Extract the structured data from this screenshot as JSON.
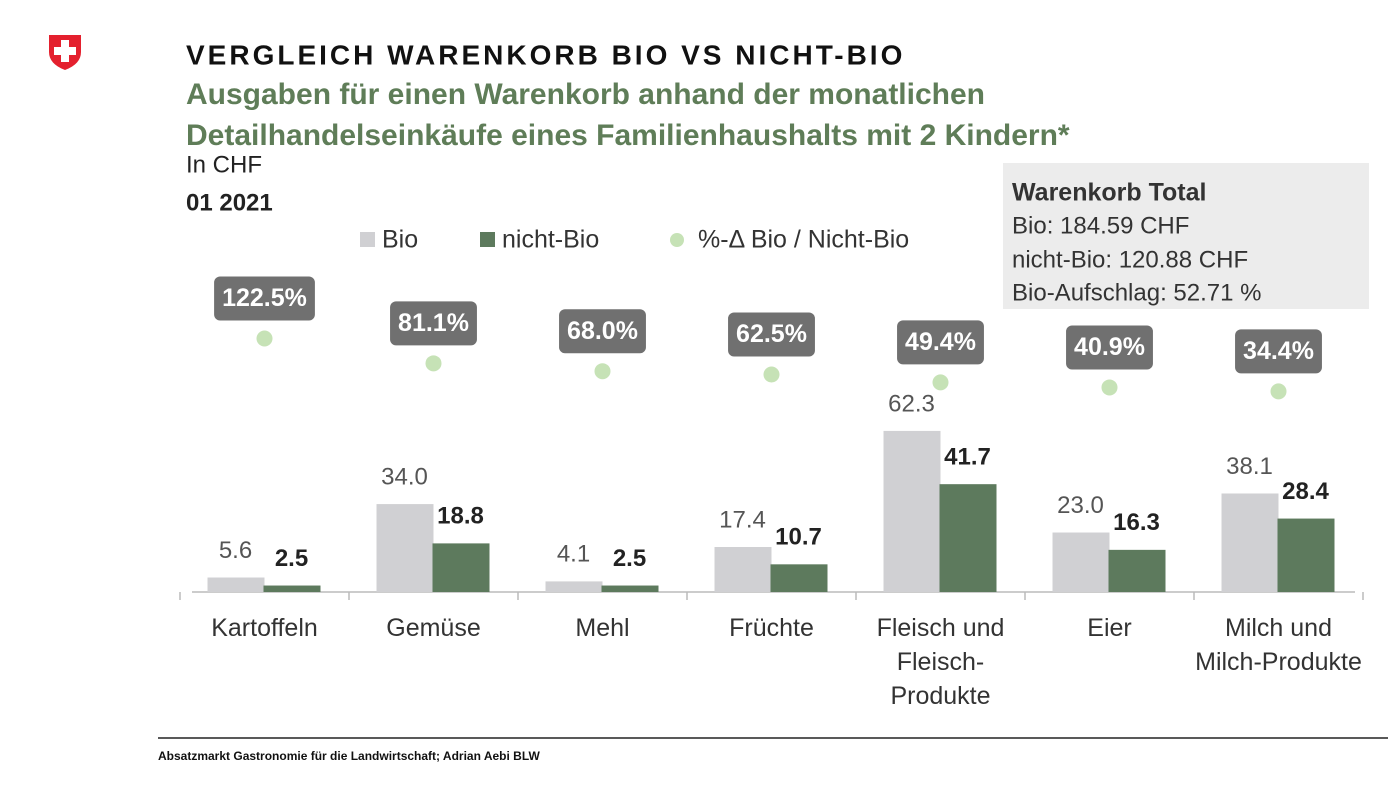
{
  "header": {
    "title": "VERGLEICH WARENKORB BIO VS NICHT-BIO",
    "subtitle": [
      "Ausgaben für einen Warenkorb anhand der monatlichen",
      "Detailhandelseinkäufe eines Familienhaushalts mit 2 Kindern*"
    ],
    "unit": "In CHF",
    "period": "01 2021"
  },
  "info_box": {
    "title": "Warenkorb Total",
    "lines": [
      "Bio: 184.59 CHF",
      "nicht-Bio: 120.88 CHF",
      "Bio-Aufschlag: 52.71 %"
    ]
  },
  "chart_data": {
    "type": "bar",
    "categories": [
      "Kartoffeln",
      "Gemüse",
      "Mehl",
      "Früchte",
      "Fleisch und Fleisch-Produkte",
      "Eier",
      "Milch und Milch-Produkte"
    ],
    "series": [
      {
        "name": "Bio",
        "color": "#d0d0d3",
        "values": [
          5.6,
          34.0,
          4.1,
          17.4,
          62.3,
          23.0,
          38.1
        ],
        "value_labels": [
          "5.6",
          "34.0",
          "4.1",
          "17.4",
          "62.3",
          "23.0",
          "38.1"
        ]
      },
      {
        "name": "nicht-Bio",
        "color": "#5d7a5d",
        "values": [
          2.5,
          18.8,
          2.5,
          10.7,
          41.7,
          16.3,
          28.4
        ]
      },
      {
        "name": "%-Δ Bio / Nicht-Bio",
        "color": "#c6e2b6",
        "axis": "y2",
        "values": [
          122.5,
          81.1,
          68.0,
          62.5,
          49.4,
          40.9,
          34.4
        ],
        "value_labels": [
          "122.5%",
          "81.1%",
          "68.0%",
          "62.5%",
          "49.4%",
          "40.9%",
          "34.4%"
        ]
      }
    ],
    "ylim": [
      0,
      70
    ],
    "y2lim": [
      0,
      150
    ]
  },
  "footer": {
    "source": "Absatzmarkt Gastronomie für die Landwirtschaft; Adrian Aebi BLW"
  }
}
